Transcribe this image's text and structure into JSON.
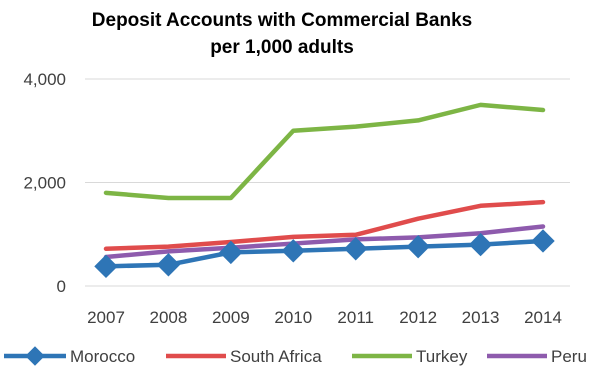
{
  "chart_data": {
    "type": "line",
    "title": "Deposit Accounts with Commercial Banks",
    "subtitle": "per 1,000 adults",
    "xlabel": "",
    "ylabel": "",
    "categories": [
      "2007",
      "2008",
      "2009",
      "2010",
      "2011",
      "2012",
      "2013",
      "2014"
    ],
    "ylim": [
      0,
      4000
    ],
    "yticks": [
      0,
      2000,
      4000
    ],
    "ytick_labels": [
      "0",
      "2,000",
      "4,000"
    ],
    "grid": true,
    "legend_position": "bottom",
    "series": [
      {
        "name": "Morocco",
        "color": "#2E75B6",
        "marker": "diamond",
        "values": [
          380,
          410,
          650,
          680,
          720,
          760,
          800,
          870
        ]
      },
      {
        "name": "South Africa",
        "color": "#E04C4C",
        "marker": "none",
        "values": [
          720,
          760,
          850,
          950,
          990,
          1300,
          1550,
          1620
        ]
      },
      {
        "name": "Turkey",
        "color": "#7DB545",
        "marker": "none",
        "values": [
          1800,
          1700,
          1700,
          3000,
          3080,
          3200,
          3500,
          3400
        ]
      },
      {
        "name": "Peru",
        "color": "#8E5BAD",
        "marker": "none",
        "values": [
          560,
          670,
          740,
          820,
          900,
          940,
          1020,
          1150
        ]
      }
    ]
  }
}
